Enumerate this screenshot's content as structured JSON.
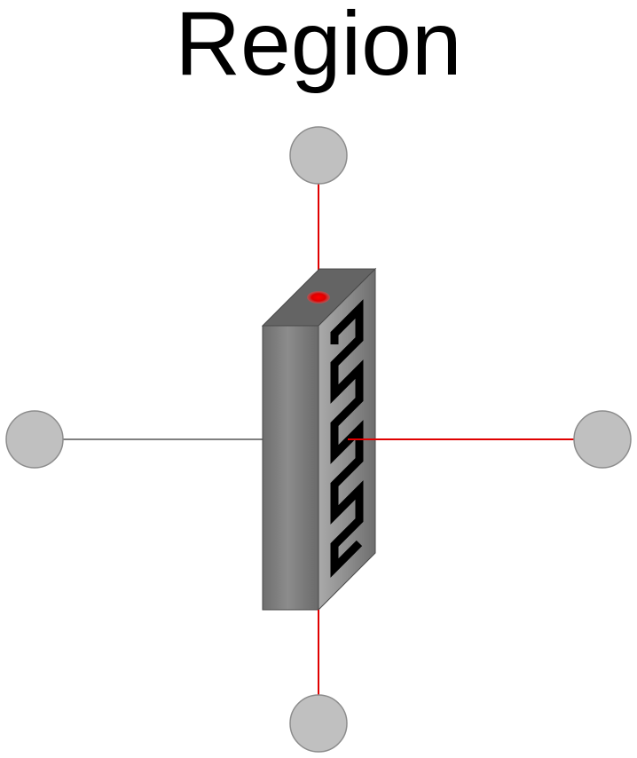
{
  "title": "Region",
  "colors": {
    "port_fill": "#c0c0c0",
    "port_stroke": "#8c8c8c",
    "red_line": "#e00000",
    "gray_line": "#808080",
    "block_front": "#7a7a7a",
    "block_top": "#666666",
    "block_side": "#8a8a8a",
    "serpentine": "#000000"
  },
  "icons": {
    "port_top": "port-circle-icon",
    "port_left": "port-circle-icon",
    "port_right": "port-circle-icon",
    "port_bottom": "port-circle-icon",
    "block": "heat-exchanger-block-icon"
  }
}
